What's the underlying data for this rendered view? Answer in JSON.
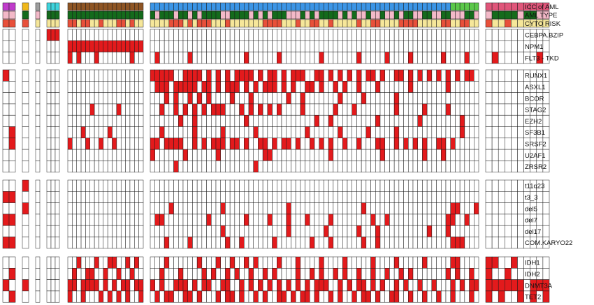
{
  "chart_data": {
    "type": "heatmap",
    "description_of_encoding": "oncoprint: columns are patients, rows are annotations / mutations; 1 = altered (red)",
    "colors": {
      "altered": "#e31a1c",
      "empty": "#ffffff",
      "grid": "#1a1a1a",
      "icc": {
        "magenta": "#c03ccb",
        "gold": "#f0b81a",
        "gray": "#9e9e9e",
        "cyan": "#3fd4dd",
        "brown": "#8e5524",
        "blue": "#3b95e6",
        "green": "#5cc84a",
        "pink": "#e0567a"
      },
      "aml_type": {
        "dark_green": "#146b1c",
        "light_pink": "#f3b9c8"
      },
      "cyto_risk": {
        "red": "#e8503a",
        "yellow": "#f6e79a"
      }
    },
    "groups": [
      {
        "id": "g1",
        "n": 2,
        "icc": "magenta"
      },
      {
        "id": "g2",
        "n": 1,
        "icc": "gold"
      },
      {
        "id": "g3",
        "n": 1,
        "icc": "gray"
      },
      {
        "id": "g4",
        "n": 3,
        "icc": "cyan"
      },
      {
        "id": "g5",
        "n": 17,
        "icc": "brown"
      },
      {
        "id": "g6",
        "n": 70,
        "icc": "blue",
        "icc_tail": {
          "color": "green",
          "count": 6
        }
      },
      {
        "id": "g7",
        "n": 10,
        "icc": "pink"
      }
    ],
    "annotation_rows": [
      {
        "name": "ICC of AML"
      },
      {
        "name": "AML TYPE"
      },
      {
        "name": "CYTO RISK"
      }
    ],
    "row_blocks": [
      {
        "rows": [
          {
            "name": "CEBPA.BZIP",
            "altered": {
              "g4": [
                0,
                1,
                2
              ]
            }
          },
          {
            "name": "NPM1",
            "altered": {
              "g5": [
                0,
                1,
                2,
                3,
                4,
                5,
                6,
                7,
                8,
                9,
                10,
                11,
                12,
                13,
                14,
                15,
                16
              ]
            }
          },
          {
            "name": "FLT3 - TKD",
            "altered": {
              "g5": [
                0,
                2,
                6,
                14
              ],
              "g6": [
                1,
                8,
                20,
                27,
                36,
                44,
                50,
                55,
                62,
                67
              ],
              "g7": [
                1,
                8
              ]
            }
          }
        ]
      },
      {
        "rows": [
          {
            "name": "RUNX1",
            "altered": {
              "g1": [
                0
              ],
              "g6": [
                0,
                1,
                2,
                3,
                4,
                7,
                8,
                9,
                10,
                12,
                14,
                16,
                18,
                19,
                20,
                21,
                23,
                25,
                26,
                28,
                30,
                31,
                32,
                35,
                36,
                38,
                40,
                42,
                44,
                46,
                47,
                49,
                52,
                53,
                55,
                57,
                59,
                61,
                63,
                65,
                67,
                68
              ]
            }
          },
          {
            "name": "ASXL1",
            "altered": {
              "g6": [
                1,
                2,
                3,
                5,
                6,
                7,
                8,
                9,
                11,
                12,
                14,
                16,
                17,
                18,
                20,
                22,
                24,
                25,
                26,
                28,
                30,
                33,
                34,
                36,
                39,
                41,
                44,
                48,
                55,
                63
              ]
            }
          },
          {
            "name": "BCOR",
            "altered": {
              "g6": [
                3,
                5,
                8,
                10,
                12,
                17,
                21,
                29,
                32,
                40,
                45,
                52
              ]
            }
          },
          {
            "name": "STAG2",
            "altered": {
              "g5": [
                5,
                11
              ],
              "g6": [
                2,
                5,
                7,
                9,
                11,
                13,
                14,
                15,
                19,
                21,
                23,
                25,
                27,
                32,
                39,
                43,
                52,
                58,
                63
              ]
            }
          },
          {
            "name": "EZH2",
            "altered": {
              "g6": [
                6,
                9,
                20,
                35,
                38,
                48,
                57,
                66
              ]
            }
          },
          {
            "name": "SF3B1",
            "altered": {
              "g1": [
                1
              ],
              "g5": [
                3,
                9
              ],
              "g6": [
                2,
                9,
                15,
                22,
                33,
                40,
                46,
                52,
                66
              ]
            }
          },
          {
            "name": "SRSF2",
            "altered": {
              "g1": [
                1
              ],
              "g5": [
                0,
                4,
                7,
                10
              ],
              "g6": [
                0,
                1,
                3,
                4,
                5,
                6,
                9,
                11,
                13,
                14,
                15,
                17,
                18,
                20,
                23,
                24,
                26,
                28,
                29,
                31,
                34,
                36,
                38,
                41,
                44,
                48,
                49,
                52,
                54,
                56,
                58,
                61,
                62,
                64
              ]
            }
          },
          {
            "name": "U2AF1",
            "altered": {
              "g6": [
                0,
                7,
                14,
                24,
                25,
                38,
                49,
                58,
                62
              ]
            }
          },
          {
            "name": "ZRSR2",
            "altered": {
              "g6": [
                5,
                22
              ]
            }
          }
        ]
      },
      {
        "rows": [
          {
            "name": "t11q23",
            "altered": {
              "g2": [
                0
              ]
            }
          },
          {
            "name": "t3_3",
            "altered": {
              "g1": [
                0,
                1
              ]
            }
          },
          {
            "name": "del5",
            "altered": {
              "g2": [
                0
              ],
              "g6": [
                4,
                15,
                29,
                45,
                64,
                65,
                69
              ]
            }
          },
          {
            "name": "del7",
            "altered": {
              "g1": [
                0,
                1
              ],
              "g6": [
                1,
                2,
                12,
                20,
                25,
                29,
                33,
                38,
                47,
                50,
                63,
                64,
                67
              ]
            }
          },
          {
            "name": "del17",
            "altered": {
              "g6": [
                15,
                29,
                37,
                44,
                48,
                59,
                63
              ]
            }
          },
          {
            "name": "COM.KARYO22",
            "altered": {
              "g1": [
                0,
                1
              ],
              "g6": [
                3,
                8,
                16,
                19,
                26,
                34,
                38,
                45,
                48,
                64,
                65,
                66
              ]
            }
          }
        ]
      },
      {
        "rows": [
          {
            "name": "IDH1",
            "altered": {
              "g5": [
                2,
                6,
                9,
                10,
                13,
                15
              ],
              "g6": [
                3,
                10,
                14,
                17,
                20,
                22,
                27,
                31,
                36,
                41,
                47,
                52,
                58,
                64,
                65
              ],
              "g7": [
                0,
                1,
                4
              ]
            }
          },
          {
            "name": "IDH2",
            "altered": {
              "g1": [
                1
              ],
              "g5": [
                1,
                4,
                5,
                8,
                11,
                14
              ],
              "g6": [
                2,
                6,
                11,
                13,
                16,
                18,
                21,
                24,
                26,
                31,
                34,
                36,
                39,
                41,
                44,
                47,
                50,
                53,
                55,
                63,
                65,
                68
              ],
              "g7": [
                0,
                3
              ]
            }
          },
          {
            "name": "DNMT3A",
            "altered": {
              "g1": [
                0
              ],
              "g2": [
                0
              ],
              "g5": [
                0,
                1,
                3,
                4,
                5,
                6,
                8,
                10,
                12,
                13,
                15,
                16
              ],
              "g6": [
                0,
                2,
                5,
                6,
                7,
                9,
                11,
                12,
                15,
                16,
                19,
                21,
                23,
                25,
                27,
                29,
                31,
                33,
                35,
                36,
                37,
                40,
                42,
                44,
                45,
                47,
                49,
                52,
                54,
                57,
                60,
                64,
                66,
                68,
                69
              ],
              "g7": [
                0,
                1,
                2,
                3,
                4,
                5,
                7,
                8,
                9
              ]
            }
          },
          {
            "name": "TET2",
            "altered": {
              "g1": [
                1
              ],
              "g5": [
                0,
                3,
                7,
                9,
                11,
                13,
                16
              ],
              "g6": [
                1,
                3,
                4,
                7,
                8,
                10,
                14,
                16,
                17,
                19,
                22,
                24,
                27,
                28,
                30,
                32,
                33,
                35,
                38,
                40,
                43,
                45,
                46,
                48,
                51,
                52,
                55,
                58,
                61,
                64,
                68
              ],
              "g7": [
                0,
                2,
                5,
                7,
                9
              ]
            }
          }
        ]
      }
    ]
  }
}
